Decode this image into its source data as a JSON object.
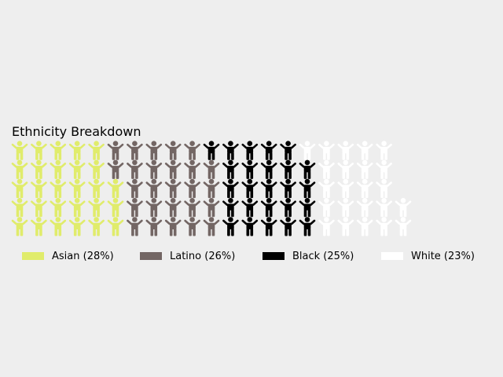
{
  "chart_data": {
    "type": "waffle",
    "title": "Ethnicity Breakdown",
    "rows": 5,
    "icon": "person-icon",
    "series": [
      {
        "name": "Asian (28%)",
        "value": 28,
        "color": "#e0ec6b"
      },
      {
        "name": "Latino (26%)",
        "value": 26,
        "color": "#736664"
      },
      {
        "name": "Black (25%)",
        "value": 25,
        "color": "#000000"
      },
      {
        "name": "White (23%)",
        "value": 23,
        "color": "#ffffff"
      }
    ],
    "legend_position": "bottom"
  }
}
